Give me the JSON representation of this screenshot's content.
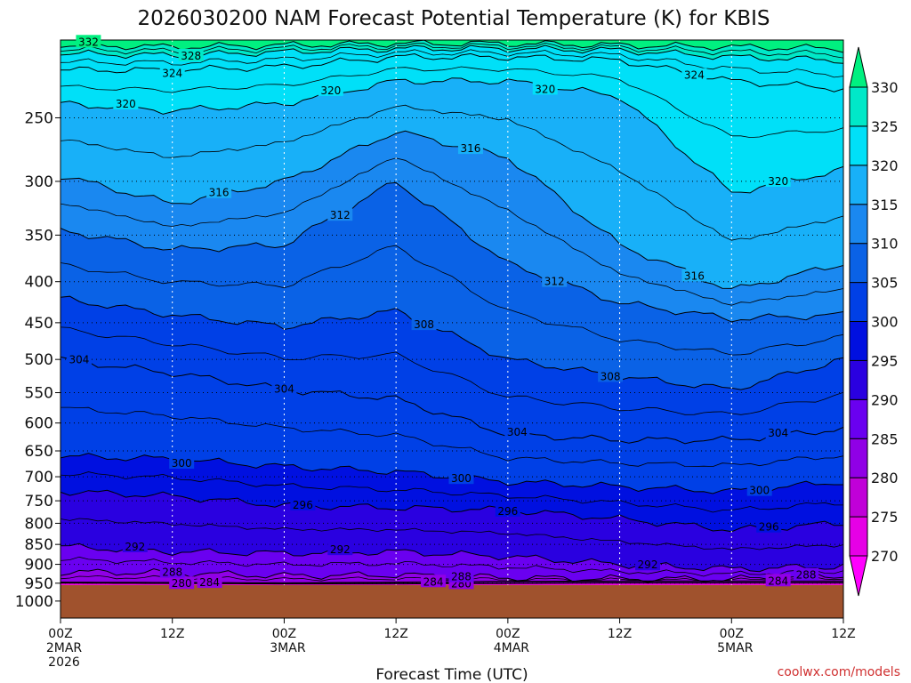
{
  "chart_data": {
    "type": "heatmap",
    "title": "2026030200 NAM Forecast Potential Temperature (K) for KBIS",
    "xlabel": "Forecast Time (UTC)",
    "ylabel": "",
    "credit": "coolwx.com/models",
    "variable": "Potential Temperature (K)",
    "x_ticks": [
      {
        "hours": 0,
        "lines": [
          "00Z",
          "2MAR",
          "2026"
        ]
      },
      {
        "hours": 12,
        "lines": [
          "12Z"
        ]
      },
      {
        "hours": 24,
        "lines": [
          "00Z",
          "3MAR"
        ]
      },
      {
        "hours": 36,
        "lines": [
          "12Z"
        ]
      },
      {
        "hours": 48,
        "lines": [
          "00Z",
          "4MAR"
        ]
      },
      {
        "hours": 60,
        "lines": [
          "12Z"
        ]
      },
      {
        "hours": 72,
        "lines": [
          "00Z",
          "5MAR"
        ]
      },
      {
        "hours": 84,
        "lines": [
          "12Z"
        ]
      }
    ],
    "x_range_hours": [
      0,
      84
    ],
    "y_ticks": [
      {
        "p": 250,
        "label": "250"
      },
      {
        "p": 300,
        "label": "300"
      },
      {
        "p": 350,
        "label": "350"
      },
      {
        "p": 400,
        "label": "400"
      },
      {
        "p": 450,
        "label": "450"
      },
      {
        "p": 500,
        "label": "500"
      },
      {
        "p": 550,
        "label": "550"
      },
      {
        "p": 600,
        "label": "600"
      },
      {
        "p": 650,
        "label": "650"
      },
      {
        "p": 700,
        "label": "700"
      },
      {
        "p": 750,
        "label": "750"
      },
      {
        "p": 800,
        "label": "800"
      },
      {
        "p": 850,
        "label": "850"
      },
      {
        "p": 900,
        "label": "900"
      },
      {
        "p": 950,
        "label": "950"
      },
      {
        "p": 1000,
        "label": "1000"
      }
    ],
    "y_range_hPa": [
      200,
      1050
    ],
    "surface_pressure_hPa": 955,
    "colorbar": {
      "levels": [
        270,
        275,
        280,
        285,
        290,
        295,
        300,
        305,
        310,
        315,
        320,
        325,
        330
      ],
      "labels": [
        "270",
        "275",
        "280",
        "285",
        "290",
        "295",
        "300",
        "305",
        "310",
        "315",
        "320",
        "325",
        "330"
      ],
      "colors": [
        "#ff00ff",
        "#e600e6",
        "#c000d8",
        "#9000e6",
        "#6a00f0",
        "#2a00e0",
        "#0010e0",
        "#0040e6",
        "#0a62e6",
        "#1a88f0",
        "#18b0f8",
        "#00e0f8",
        "#00e8c8",
        "#00f080"
      ]
    },
    "isentropes": [
      {
        "theta": 280,
        "p": [
          950,
          951,
          952,
          952,
          951,
          950,
          950,
          950
        ],
        "label_hours": [
          13,
          43
        ],
        "label": "280"
      },
      {
        "theta": 284,
        "p": [
          947,
          948,
          949,
          947,
          945,
          944,
          944,
          944
        ],
        "label_hours": [
          16,
          40,
          77
        ],
        "label": "284"
      },
      {
        "theta": 288,
        "p": [
          920,
          922,
          930,
          928,
          935,
          938,
          939,
          930
        ],
        "label_hours": [
          12,
          43,
          80
        ],
        "label": "288"
      },
      {
        "theta": 292,
        "p": [
          855,
          868,
          872,
          868,
          880,
          900,
          912,
          905
        ],
        "label_hours": [
          8,
          30,
          63
        ],
        "label": "292"
      },
      {
        "theta": 296,
        "p": [
          730,
          740,
          760,
          765,
          770,
          790,
          815,
          800
        ],
        "label_hours": [
          26,
          48,
          76
        ],
        "label": "296"
      },
      {
        "theta": 300,
        "p": [
          660,
          665,
          680,
          690,
          710,
          720,
          730,
          710
        ],
        "label_hours": [
          13,
          43,
          75
        ],
        "label": "300"
      },
      {
        "theta": 304,
        "p": [
          500,
          520,
          545,
          560,
          620,
          630,
          630,
          610
        ],
        "label_hours": [
          2,
          24,
          49,
          77
        ],
        "label": "304"
      },
      {
        "theta": 308,
        "p": [
          420,
          440,
          455,
          435,
          500,
          525,
          545,
          500
        ],
        "label_hours": [
          39,
          59
        ],
        "label": "308"
      },
      {
        "theta": 312,
        "p": [
          345,
          365,
          360,
          300,
          380,
          425,
          445,
          440
        ],
        "label_hours": [
          30,
          53
        ],
        "label": "312"
      },
      {
        "theta": 316,
        "p": [
          295,
          320,
          300,
          260,
          280,
          360,
          410,
          380
        ],
        "label_hours": [
          17,
          44,
          68
        ],
        "label": "316"
      },
      {
        "theta": 320,
        "p": [
          240,
          245,
          240,
          225,
          225,
          235,
          310,
          290
        ],
        "label_hours": [
          7,
          29,
          52,
          77
        ],
        "label": "320"
      },
      {
        "theta": 324,
        "p": [
          218,
          218,
          216,
          210,
          210,
          212,
          225,
          230
        ],
        "label_hours": [
          12,
          68
        ],
        "label": "324"
      },
      {
        "theta": 328,
        "p": [
          208,
          209,
          207,
          205,
          205,
          206,
          210,
          212
        ],
        "label_hours": [
          14
        ],
        "label": "328"
      },
      {
        "theta": 332,
        "p": [
          203,
          204,
          203,
          202,
          202,
          203,
          204,
          205
        ],
        "label_hours": [
          3
        ],
        "label": "332"
      }
    ]
  }
}
